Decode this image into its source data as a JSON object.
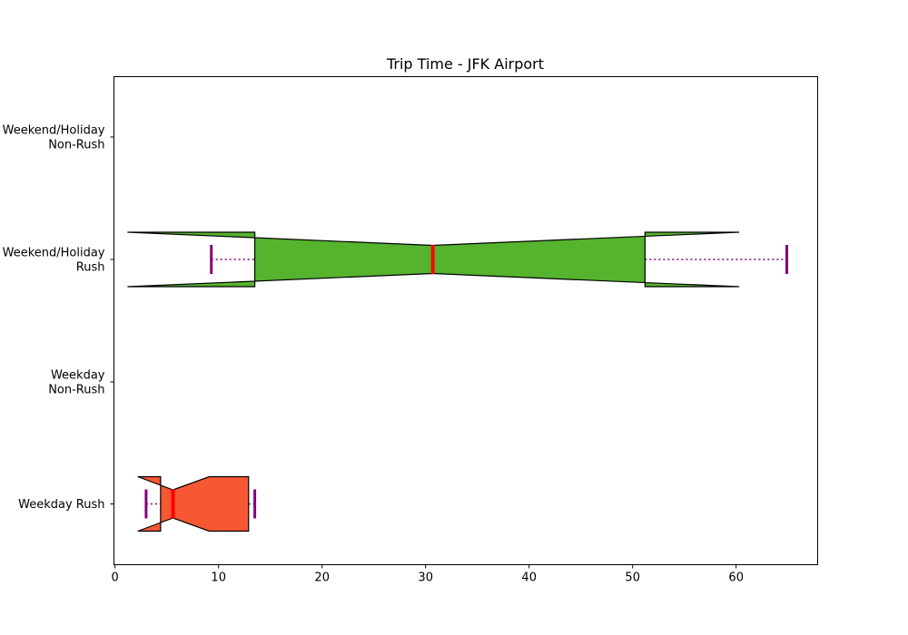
{
  "chart_data": {
    "type": "boxplot",
    "orientation": "horizontal",
    "notched": true,
    "title": "Trip Time - JFK Airport",
    "xlabel": "",
    "ylabel": "",
    "xlim": [
      0,
      68
    ],
    "xticks": [
      0,
      10,
      20,
      30,
      40,
      50,
      60
    ],
    "grid": false,
    "categories": [
      [
        "Weekday Rush"
      ],
      [
        "Weekday",
        "Non-Rush"
      ],
      [
        "Weekend/Holiday",
        "Rush"
      ],
      [
        "Weekend/Holiday",
        "Non-Rush"
      ]
    ],
    "boxes": [
      {
        "category_index": 0,
        "whisker_low": 3.0,
        "q1": 4.4,
        "median": 5.6,
        "q3": 12.9,
        "whisker_high": 13.5,
        "notch_low": 2.2,
        "notch_high": 9.1,
        "color": "#f75834"
      },
      {
        "category_index": 1,
        "empty": true
      },
      {
        "category_index": 2,
        "whisker_low": 9.3,
        "q1": 13.5,
        "median": 30.7,
        "q3": 51.2,
        "whisker_high": 64.9,
        "notch_low": 1.2,
        "notch_high": 60.3,
        "color": "#55b32e"
      },
      {
        "category_index": 3,
        "empty": true
      }
    ],
    "styles": {
      "median_color": "#ff0000",
      "whisker_color": "#800080",
      "edge_color": "#000000"
    }
  }
}
